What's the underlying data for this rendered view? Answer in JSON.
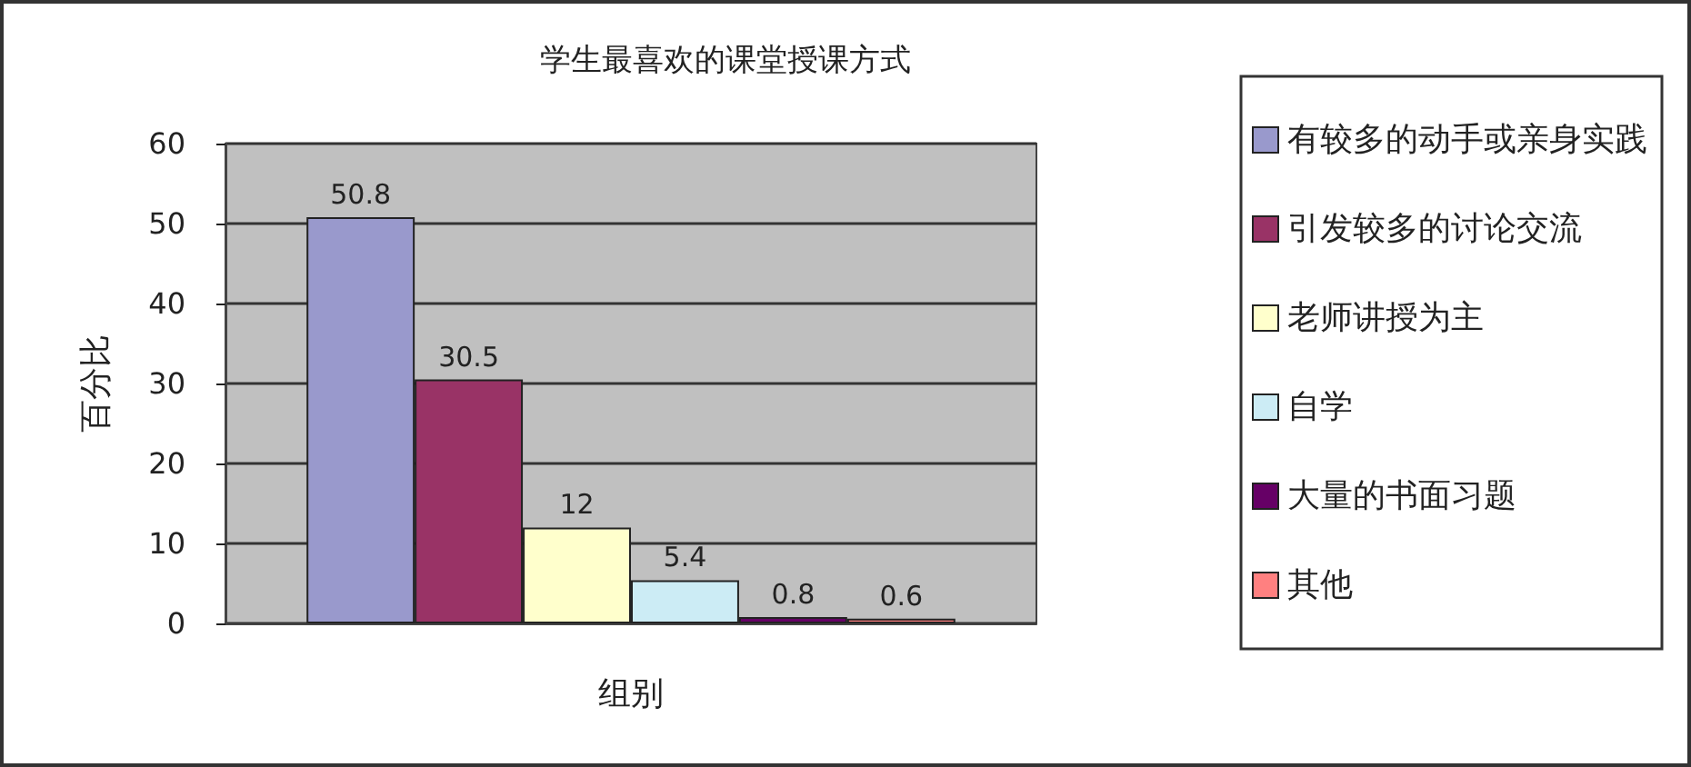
{
  "chart_data": {
    "type": "bar",
    "title": "学生最喜欢的课堂授课方式",
    "xlabel": "组别",
    "ylabel": "百分比",
    "categories": [
      null
    ],
    "series": [
      {
        "name": "有较多的动手或亲身实践",
        "color": "#9999cc",
        "values": [
          50.8
        ]
      },
      {
        "name": "引发较多的讨论交流",
        "color": "#993366",
        "values": [
          30.5
        ]
      },
      {
        "name": "老师讲授为主",
        "color": "#ffffcc",
        "values": [
          12
        ]
      },
      {
        "name": "自学",
        "color": "#ccecf5",
        "values": [
          5.4
        ]
      },
      {
        "name": "大量的书面习题",
        "color": "#660066",
        "values": [
          0.8
        ]
      },
      {
        "name": "其他",
        "color": "#ff8080",
        "values": [
          0.6
        ]
      }
    ],
    "ylim": [
      0,
      60
    ],
    "yticks": [
      0,
      10,
      20,
      30,
      40,
      50,
      60
    ],
    "grid": "y",
    "legend": "right",
    "data_labels": true
  }
}
